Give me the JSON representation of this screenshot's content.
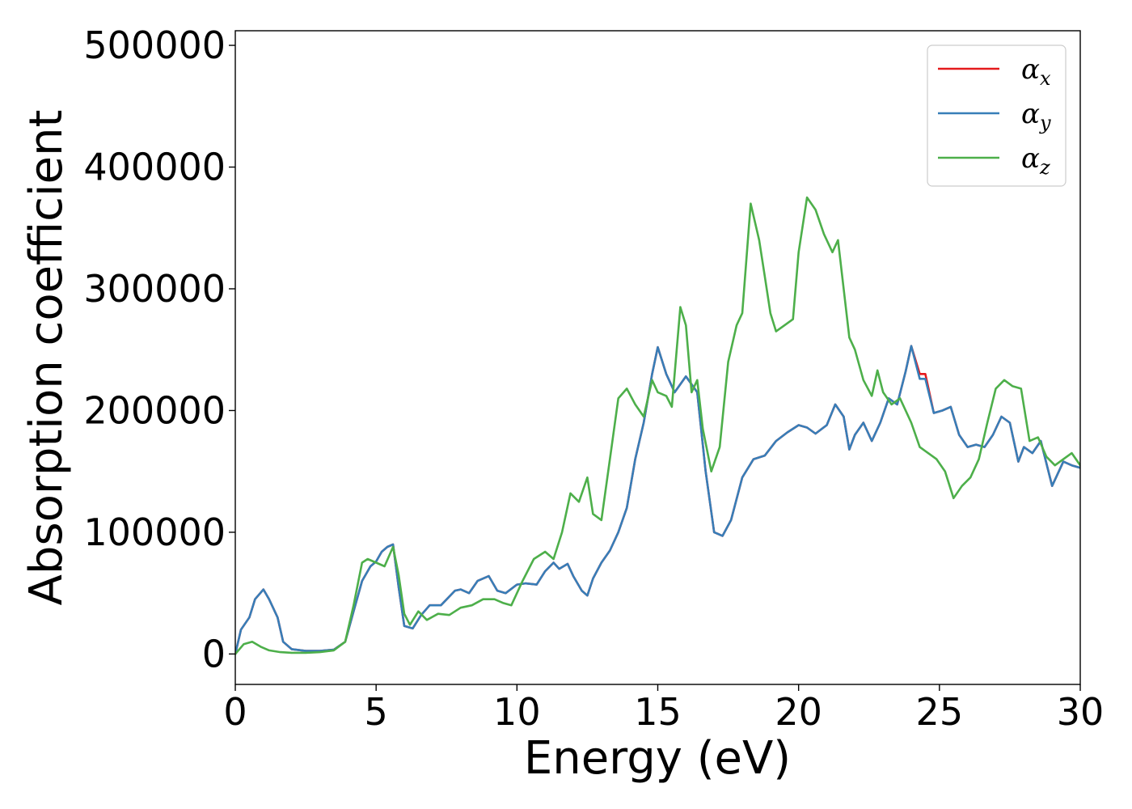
{
  "chart_data": {
    "type": "line",
    "title": "",
    "xlabel": "Energy (eV)",
    "ylabel": "Absorption coefficient",
    "xlim": [
      0,
      30
    ],
    "ylim": [
      -25000,
      512000
    ],
    "xticks": [
      0,
      5,
      10,
      15,
      20,
      25,
      30
    ],
    "yticks": [
      0,
      100000,
      200000,
      300000,
      400000,
      500000
    ],
    "xtick_labels": [
      "0",
      "5",
      "10",
      "15",
      "20",
      "25",
      "30"
    ],
    "ytick_labels": [
      "0",
      "100000",
      "200000",
      "300000",
      "400000",
      "500000"
    ],
    "grid": false,
    "legend": "top-right",
    "series": [
      {
        "name": "α_x",
        "legend_symbol": "α",
        "legend_sub": "x",
        "color": "#e41a1c",
        "x": [
          0,
          0.2,
          0.5,
          0.7,
          1.0,
          1.2,
          1.5,
          1.7,
          2.0,
          2.5,
          3.0,
          3.5,
          3.9,
          4.2,
          4.5,
          4.8,
          5.0,
          5.2,
          5.4,
          5.6,
          5.8,
          6.0,
          6.3,
          6.6,
          6.9,
          7.3,
          7.8,
          8.0,
          8.3,
          8.6,
          9.0,
          9.3,
          9.6,
          10.0,
          10.3,
          10.7,
          11.0,
          11.3,
          11.5,
          11.8,
          12.0,
          12.3,
          12.5,
          12.7,
          13.0,
          13.3,
          13.6,
          13.9,
          14.2,
          14.5,
          14.8,
          15.0,
          15.3,
          15.6,
          16.0,
          16.4,
          16.7,
          17.0,
          17.3,
          17.6,
          18.0,
          18.4,
          18.8,
          19.2,
          19.6,
          20.0,
          20.3,
          20.6,
          21.0,
          21.3,
          21.6,
          21.8,
          22.0,
          22.3,
          22.6,
          22.9,
          23.2,
          23.5,
          23.8,
          24.0,
          24.3,
          24.5,
          24.8,
          25.1,
          25.4,
          25.7,
          26.0,
          26.3,
          26.6,
          26.9,
          27.2,
          27.5,
          27.8,
          28.0,
          28.3,
          28.6,
          29.0,
          29.4,
          29.7,
          30.0
        ],
        "y": [
          0,
          20000,
          30000,
          45000,
          53000,
          45000,
          30000,
          10000,
          4000,
          2500,
          2500,
          3500,
          10000,
          35000,
          60000,
          72000,
          76000,
          84000,
          88000,
          90000,
          55000,
          23000,
          21000,
          32000,
          40000,
          40000,
          52000,
          53000,
          50000,
          60000,
          64000,
          52000,
          50000,
          57000,
          58000,
          57000,
          68000,
          75000,
          70000,
          74000,
          64000,
          52000,
          48000,
          62000,
          75000,
          85000,
          100000,
          120000,
          160000,
          190000,
          230000,
          252000,
          230000,
          215000,
          228000,
          215000,
          150000,
          100000,
          97000,
          110000,
          145000,
          160000,
          163000,
          175000,
          182000,
          188000,
          186000,
          181000,
          188000,
          205000,
          195000,
          168000,
          180000,
          190000,
          175000,
          190000,
          210000,
          205000,
          232000,
          253000,
          230000,
          230000,
          198000,
          200000,
          203000,
          180000,
          170000,
          172000,
          170000,
          180000,
          195000,
          190000,
          158000,
          170000,
          165000,
          175000,
          138000,
          158000,
          155000,
          153000
        ]
      },
      {
        "name": "α_y",
        "legend_symbol": "α",
        "legend_sub": "y",
        "color": "#377eb8",
        "x": [
          0,
          0.2,
          0.5,
          0.7,
          1.0,
          1.2,
          1.5,
          1.7,
          2.0,
          2.5,
          3.0,
          3.5,
          3.9,
          4.2,
          4.5,
          4.8,
          5.0,
          5.2,
          5.4,
          5.6,
          5.8,
          6.0,
          6.3,
          6.6,
          6.9,
          7.3,
          7.8,
          8.0,
          8.3,
          8.6,
          9.0,
          9.3,
          9.6,
          10.0,
          10.3,
          10.7,
          11.0,
          11.3,
          11.5,
          11.8,
          12.0,
          12.3,
          12.5,
          12.7,
          13.0,
          13.3,
          13.6,
          13.9,
          14.2,
          14.5,
          14.8,
          15.0,
          15.3,
          15.6,
          16.0,
          16.4,
          16.7,
          17.0,
          17.3,
          17.6,
          18.0,
          18.4,
          18.8,
          19.2,
          19.6,
          20.0,
          20.3,
          20.6,
          21.0,
          21.3,
          21.6,
          21.8,
          22.0,
          22.3,
          22.6,
          22.9,
          23.2,
          23.5,
          23.8,
          24.0,
          24.3,
          24.5,
          24.8,
          25.1,
          25.4,
          25.7,
          26.0,
          26.3,
          26.6,
          26.9,
          27.2,
          27.5,
          27.8,
          28.0,
          28.3,
          28.6,
          29.0,
          29.4,
          29.7,
          30.0
        ],
        "y": [
          0,
          20000,
          30000,
          45000,
          53000,
          45000,
          30000,
          10000,
          4000,
          2500,
          2500,
          3500,
          10000,
          35000,
          60000,
          72000,
          76000,
          84000,
          88000,
          90000,
          55000,
          23000,
          21000,
          32000,
          40000,
          40000,
          52000,
          53000,
          50000,
          60000,
          64000,
          52000,
          50000,
          57000,
          58000,
          57000,
          68000,
          75000,
          70000,
          74000,
          64000,
          52000,
          48000,
          62000,
          75000,
          85000,
          100000,
          120000,
          160000,
          190000,
          230000,
          252000,
          230000,
          215000,
          228000,
          215000,
          150000,
          100000,
          97000,
          110000,
          145000,
          160000,
          163000,
          175000,
          182000,
          188000,
          186000,
          181000,
          188000,
          205000,
          195000,
          168000,
          180000,
          190000,
          175000,
          190000,
          210000,
          205000,
          232000,
          253000,
          226000,
          226000,
          198000,
          200000,
          203000,
          180000,
          170000,
          172000,
          170000,
          180000,
          195000,
          190000,
          158000,
          170000,
          165000,
          175000,
          138000,
          158000,
          155000,
          153000
        ]
      },
      {
        "name": "α_z",
        "legend_symbol": "α",
        "legend_sub": "z",
        "color": "#4daf4a",
        "x": [
          0,
          0.3,
          0.6,
          0.9,
          1.2,
          1.6,
          2.0,
          2.5,
          3.0,
          3.5,
          3.9,
          4.2,
          4.5,
          4.7,
          5.0,
          5.3,
          5.6,
          5.8,
          6.0,
          6.2,
          6.5,
          6.8,
          7.2,
          7.6,
          8.0,
          8.4,
          8.8,
          9.2,
          9.5,
          9.8,
          10.2,
          10.6,
          11.0,
          11.3,
          11.6,
          11.9,
          12.2,
          12.5,
          12.7,
          13.0,
          13.3,
          13.6,
          13.9,
          14.2,
          14.5,
          14.8,
          15.0,
          15.3,
          15.5,
          15.8,
          16.0,
          16.2,
          16.4,
          16.6,
          16.9,
          17.2,
          17.5,
          17.8,
          18.0,
          18.3,
          18.6,
          18.8,
          19.0,
          19.2,
          19.5,
          19.8,
          20.0,
          20.3,
          20.6,
          20.9,
          21.2,
          21.4,
          21.6,
          21.8,
          22.0,
          22.3,
          22.6,
          22.8,
          23.0,
          23.3,
          23.6,
          24.0,
          24.3,
          24.6,
          24.9,
          25.2,
          25.5,
          25.8,
          26.1,
          26.4,
          26.7,
          27.0,
          27.3,
          27.6,
          27.9,
          28.2,
          28.5,
          28.8,
          29.1,
          29.4,
          29.7,
          30.0
        ],
        "y": [
          0,
          8000,
          10000,
          6000,
          3000,
          1500,
          1000,
          1000,
          1500,
          3000,
          10000,
          40000,
          75000,
          78000,
          75000,
          72000,
          88000,
          65000,
          33000,
          24000,
          35000,
          28000,
          33000,
          32000,
          38000,
          40000,
          45000,
          45000,
          42000,
          40000,
          60000,
          78000,
          84000,
          78000,
          100000,
          132000,
          125000,
          145000,
          115000,
          110000,
          160000,
          210000,
          218000,
          205000,
          195000,
          225000,
          215000,
          212000,
          203000,
          285000,
          270000,
          215000,
          225000,
          185000,
          150000,
          170000,
          240000,
          270000,
          280000,
          370000,
          340000,
          310000,
          280000,
          265000,
          270000,
          275000,
          330000,
          375000,
          365000,
          345000,
          330000,
          340000,
          300000,
          260000,
          250000,
          225000,
          212000,
          233000,
          215000,
          205000,
          210000,
          190000,
          170000,
          165000,
          160000,
          150000,
          128000,
          138000,
          145000,
          160000,
          190000,
          218000,
          225000,
          220000,
          218000,
          175000,
          178000,
          162000,
          155000,
          160000,
          165000,
          155000
        ]
      }
    ]
  }
}
